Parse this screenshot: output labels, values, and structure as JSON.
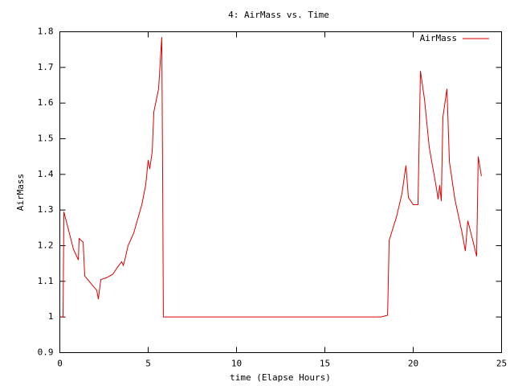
{
  "chart_data": {
    "type": "line",
    "title": "4: AirMass vs. Time",
    "x_label": "time (Elapse Hours)",
    "y_label": "AirMass",
    "xlim": [
      0,
      25
    ],
    "xticks": [
      0,
      5,
      10,
      15,
      20,
      25
    ],
    "ylim": [
      0.9,
      1.8
    ],
    "yticks": [
      0.9,
      1,
      1.1,
      1.2,
      1.3,
      1.4,
      1.5,
      1.6,
      1.7,
      1.8
    ],
    "grid": false,
    "legend": "top-right",
    "series": [
      {
        "name": "AirMass",
        "color": "#dd0000",
        "x": [
          0,
          0.18,
          0.23,
          0.77,
          1.05,
          1.09,
          1.32,
          1.41,
          1.91,
          2.09,
          2.18,
          2.32,
          2.64,
          3.0,
          3.27,
          3.5,
          3.59,
          3.68,
          3.86,
          4.18,
          4.64,
          4.86,
          5.0,
          5.09,
          5.23,
          5.32,
          5.59,
          5.77,
          5.82,
          5.86,
          18.18,
          18.55,
          18.64,
          19.05,
          19.36,
          19.59,
          19.73,
          20.0,
          20.27,
          20.41,
          20.64,
          20.91,
          21.32,
          21.41,
          21.5,
          21.59,
          21.68,
          21.91,
          22.05,
          22.36,
          22.77,
          22.95,
          23.09,
          23.32,
          23.59,
          23.68,
          23.86
        ],
        "values": [
          1.0,
          1.0,
          1.295,
          1.19,
          1.16,
          1.22,
          1.21,
          1.115,
          1.085,
          1.075,
          1.05,
          1.105,
          1.11,
          1.12,
          1.14,
          1.155,
          1.145,
          1.16,
          1.2,
          1.235,
          1.315,
          1.37,
          1.44,
          1.415,
          1.465,
          1.575,
          1.64,
          1.785,
          1.39,
          1.0,
          1.0,
          1.005,
          1.215,
          1.28,
          1.345,
          1.425,
          1.335,
          1.315,
          1.315,
          1.69,
          1.61,
          1.475,
          1.36,
          1.33,
          1.37,
          1.325,
          1.56,
          1.64,
          1.435,
          1.33,
          1.235,
          1.185,
          1.27,
          1.225,
          1.17,
          1.45,
          1.395
        ]
      }
    ]
  }
}
